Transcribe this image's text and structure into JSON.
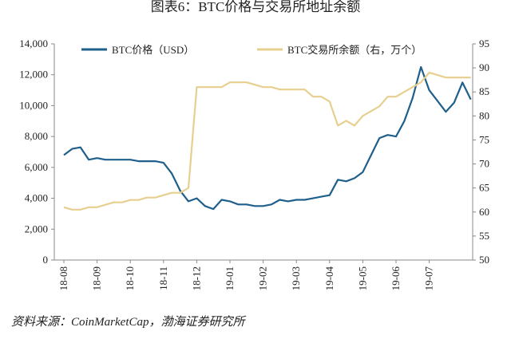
{
  "chart_data": {
    "type": "line",
    "title": "图表6：BTC价格与交易所地址余额",
    "source": "资料来源：CoinMarketCap，渤海证券研究所",
    "categories": [
      "18-08",
      null,
      null,
      null,
      "18-09",
      null,
      null,
      null,
      "18-10",
      null,
      null,
      null,
      "18-11",
      null,
      null,
      null,
      "18-12",
      null,
      null,
      null,
      "19-01",
      null,
      null,
      null,
      "19-02",
      null,
      null,
      null,
      "19-03",
      null,
      null,
      null,
      "19-04",
      null,
      null,
      null,
      "19-05",
      null,
      null,
      null,
      "19-06",
      null,
      null,
      null,
      "19-07",
      null,
      null,
      null,
      null,
      null
    ],
    "series": [
      {
        "name": "BTC价格（USD）",
        "color": "#1f5f8b",
        "axis": "y",
        "values": [
          6800,
          7200,
          7300,
          6500,
          6600,
          6500,
          6500,
          6500,
          6500,
          6400,
          6400,
          6400,
          6300,
          5600,
          4500,
          3800,
          4000,
          3500,
          3300,
          3900,
          3800,
          3600,
          3600,
          3500,
          3500,
          3600,
          3900,
          3800,
          3900,
          3900,
          4000,
          4100,
          4200,
          5200,
          5100,
          5300,
          5700,
          6800,
          7900,
          8100,
          8000,
          9000,
          10500,
          12500,
          11000,
          10300,
          9600,
          10200,
          11500,
          10400
        ]
      },
      {
        "name": "BTC交易所余额（右，万个）",
        "color": "#e6cf8f",
        "axis": "y2",
        "values": [
          61,
          60.5,
          60.5,
          61,
          61,
          61.5,
          62,
          62,
          62.5,
          62.5,
          63,
          63,
          63.5,
          64,
          64,
          65,
          86,
          86,
          86,
          86,
          87,
          87,
          87,
          86.5,
          86,
          86,
          85.5,
          85.5,
          85.5,
          85.5,
          84,
          84,
          83,
          78,
          79,
          78,
          80,
          81,
          82,
          84,
          84,
          85,
          86,
          87,
          89,
          88.5,
          88,
          88,
          88,
          88
        ]
      }
    ],
    "ylim": [
      0,
      14000
    ],
    "yticks": [
      0,
      {
        "value": 2000,
        "label": "2,000"
      },
      {
        "value": 4000,
        "label": "4,000"
      },
      {
        "value": 6000,
        "label": "6,000"
      },
      {
        "value": 8000,
        "label": "8,000"
      },
      {
        "value": 10000,
        "label": "10,000"
      },
      {
        "value": 12000,
        "label": "12,000"
      },
      {
        "value": 14000,
        "label": "14,000"
      }
    ],
    "y2lim": [
      50,
      95
    ],
    "y2ticks": [
      50,
      55,
      60,
      65,
      70,
      75,
      80,
      85,
      90,
      95
    ],
    "legend": "top"
  }
}
